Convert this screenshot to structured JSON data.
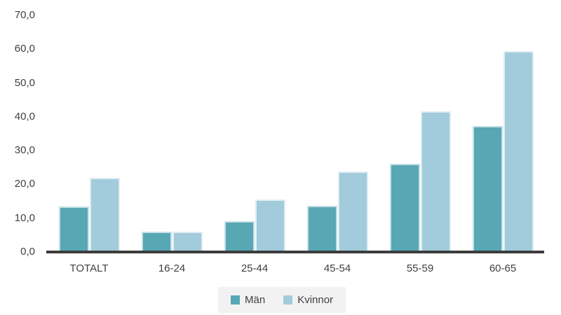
{
  "chart_data": {
    "type": "bar",
    "title": "",
    "xlabel": "",
    "ylabel": "",
    "categories": [
      "TOTALT",
      "16-24",
      "25-44",
      "45-54",
      "55-59",
      "60-65"
    ],
    "series": [
      {
        "name": "Män",
        "color": "#58a7b5",
        "values": [
          13.4,
          6.1,
          9.1,
          13.6,
          26.2,
          37.3
        ]
      },
      {
        "name": "Kvinnor",
        "color": "#a2cbdc",
        "values": [
          21.9,
          6.1,
          15.6,
          23.9,
          41.6,
          59.4
        ]
      }
    ],
    "ylim": [
      0,
      70
    ],
    "ytick_step": 10,
    "ytick_labels": [
      "0,0",
      "10,0",
      "20,0",
      "30,0",
      "40,0",
      "50,0",
      "60,0",
      "70,0"
    ],
    "grid": false,
    "legend_position": "bottom",
    "colors": {
      "axis_line": "#3d3d3d",
      "text": "#404040",
      "legend_background": "#f2f2f2",
      "background": "#ffffff"
    }
  }
}
